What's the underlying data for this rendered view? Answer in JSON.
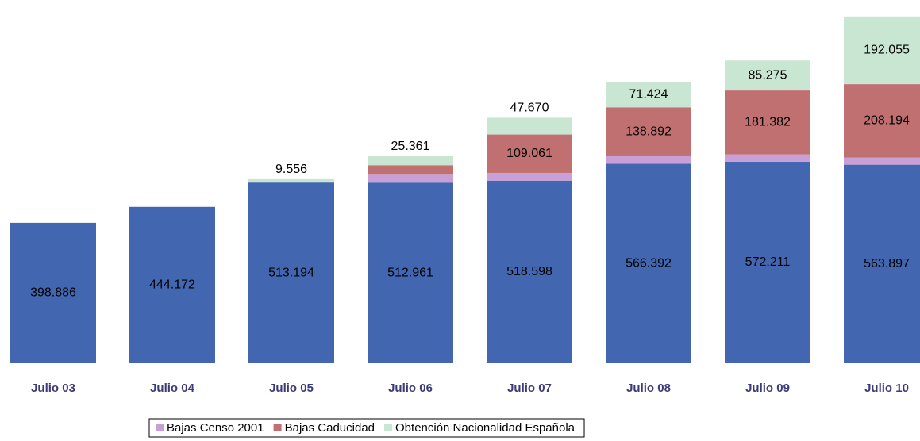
{
  "chart_data": {
    "type": "stacked_bar",
    "categories": [
      "Julio 03",
      "Julio 04",
      "Julio 05",
      "Julio 06",
      "Julio 07",
      "Julio 08",
      "Julio 09",
      "Julio 10"
    ],
    "ylim": [
      0,
      1000000
    ],
    "legend": "bottom",
    "series": [
      {
        "color": "#4266b0",
        "values": [
          398886,
          444172,
          513194,
          512961,
          518598,
          566392,
          572211,
          563897
        ],
        "value_labels": [
          "398.886",
          "444.172",
          "513.194",
          "512.961",
          "518.598",
          "566.392",
          "572.211",
          "563.897"
        ]
      },
      {
        "name": "Bajas Censo 2001",
        "color": "#c89fd6",
        "values": [
          null,
          null,
          null,
          22500,
          22000,
          21500,
          21000,
          20500
        ]
      },
      {
        "name": "Bajas Caducidad",
        "color": "#c07070",
        "values": [
          null,
          null,
          null,
          27000,
          109061,
          138892,
          181382,
          208194
        ],
        "value_labels": [
          null,
          null,
          null,
          null,
          "109.061",
          "138.892",
          "181.382",
          "208.194"
        ]
      },
      {
        "name": "Obtención Nacionalidad Española",
        "color": "#c8e6d2",
        "values": [
          null,
          null,
          9556,
          25361,
          47670,
          71424,
          85275,
          192055
        ],
        "value_labels": [
          null,
          null,
          "9.556",
          "25.361",
          "47.670",
          "71.424",
          "85.275",
          "192.055"
        ]
      }
    ]
  }
}
